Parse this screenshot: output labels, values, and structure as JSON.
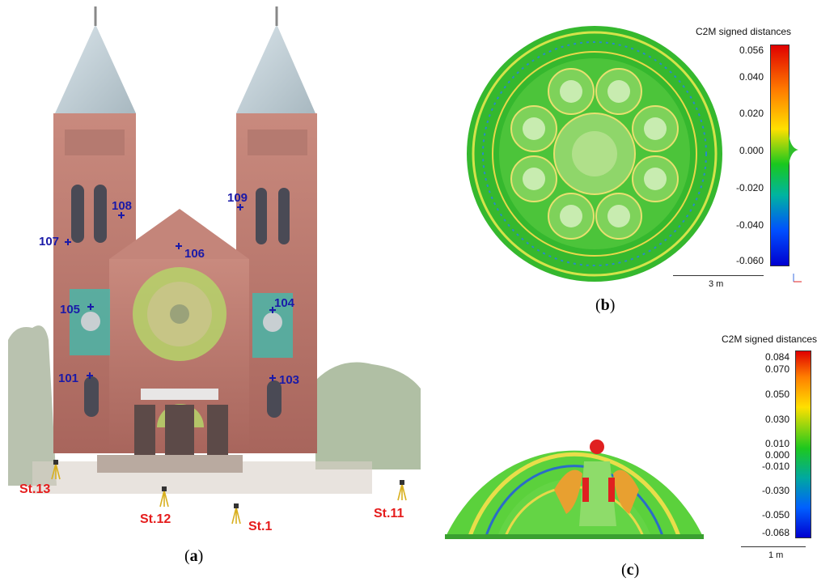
{
  "panel_a": {
    "label": "a",
    "targets": [
      {
        "id": "107",
        "text": "107"
      },
      {
        "id": "108",
        "text": "108"
      },
      {
        "id": "109",
        "text": "109"
      },
      {
        "id": "106",
        "text": "106"
      },
      {
        "id": "105",
        "text": "105"
      },
      {
        "id": "104",
        "text": "104"
      },
      {
        "id": "101",
        "text": "101"
      },
      {
        "id": "103",
        "text": "103"
      }
    ],
    "stations": [
      "St.13",
      "St.12",
      "St.1",
      "St.11"
    ]
  },
  "panel_b": {
    "label": "b",
    "colorbar_title": "C2M signed distances",
    "ticks": [
      "0.056",
      "0.040",
      "0.020",
      "0.000",
      "-0.020",
      "-0.040",
      "-0.060"
    ],
    "scale_bar": "3 m"
  },
  "panel_c": {
    "label": "c",
    "colorbar_title": "C2M signed distances",
    "ticks": [
      "0.084",
      "0.070",
      "0.050",
      "0.030",
      "0.010",
      "0.000",
      "-0.010",
      "-0.030",
      "-0.050",
      "-0.068"
    ],
    "scale_bar": "1 m"
  },
  "colors": {
    "target_blue": "#1a1aa8",
    "station_red": "#e51c1c",
    "point_cloud_green": "#5fcf3a"
  }
}
